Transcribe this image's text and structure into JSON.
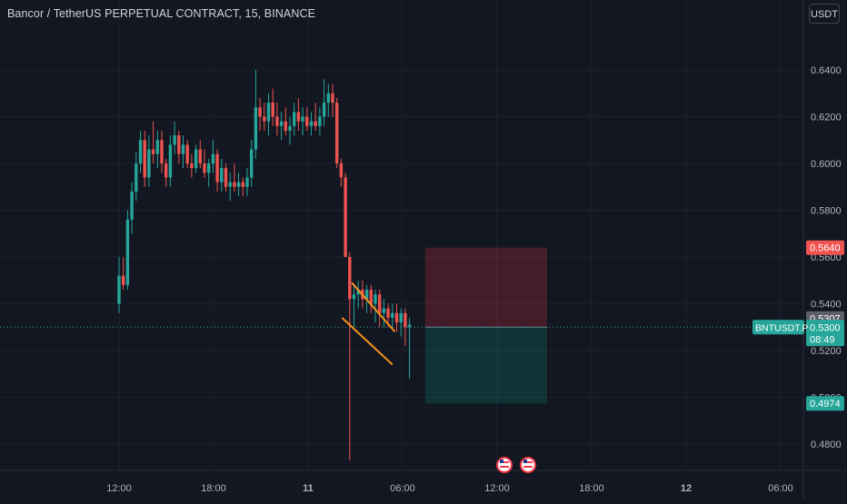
{
  "header": {
    "title": "Bancor / TetherUS PERPETUAL CONTRACT, 15, BINANCE",
    "currency_button": "USDT"
  },
  "colors": {
    "background": "#131722",
    "up": "#26a69a",
    "down": "#ef5350",
    "trendline": "#f7931a",
    "axis_text": "#b2b5be",
    "grid": "#1e222d"
  },
  "chart_data": {
    "type": "candlestick",
    "symbol": "BNTUSDT.P",
    "ylim": [
      0.47,
      0.66
    ],
    "y_ticks": [
      "0.6400",
      "0.6200",
      "0.6000",
      "0.5800",
      "0.5600",
      "0.5400",
      "0.5200",
      "0.5000",
      "0.4800"
    ],
    "x_ticks": [
      "12:00",
      "18:00",
      "11",
      "06:00",
      "12:00",
      "18:00",
      "12",
      "06:00"
    ],
    "price_labels": {
      "stop": "0.5640",
      "last_close": "0.5307",
      "current": "0.5300",
      "countdown": "08:49",
      "target": "0.4974"
    },
    "position": {
      "entry": 0.53,
      "stop": 0.564,
      "target": 0.4974
    },
    "candles_ohlc": [
      [
        0.54,
        0.56,
        0.536,
        0.552
      ],
      [
        0.552,
        0.56,
        0.546,
        0.548
      ],
      [
        0.548,
        0.58,
        0.546,
        0.576
      ],
      [
        0.576,
        0.592,
        0.57,
        0.588
      ],
      [
        0.588,
        0.605,
        0.584,
        0.6
      ],
      [
        0.6,
        0.614,
        0.596,
        0.61
      ],
      [
        0.61,
        0.614,
        0.59,
        0.594
      ],
      [
        0.594,
        0.612,
        0.59,
        0.606
      ],
      [
        0.606,
        0.618,
        0.6,
        0.604
      ],
      [
        0.604,
        0.614,
        0.598,
        0.61
      ],
      [
        0.61,
        0.614,
        0.596,
        0.6
      ],
      [
        0.6,
        0.602,
        0.59,
        0.594
      ],
      [
        0.594,
        0.612,
        0.59,
        0.608
      ],
      [
        0.608,
        0.618,
        0.604,
        0.612
      ],
      [
        0.612,
        0.614,
        0.6,
        0.604
      ],
      [
        0.604,
        0.612,
        0.598,
        0.608
      ],
      [
        0.608,
        0.61,
        0.598,
        0.6
      ],
      [
        0.6,
        0.604,
        0.594,
        0.598
      ],
      [
        0.598,
        0.608,
        0.596,
        0.606
      ],
      [
        0.606,
        0.61,
        0.598,
        0.6
      ],
      [
        0.6,
        0.606,
        0.594,
        0.596
      ],
      [
        0.596,
        0.602,
        0.59,
        0.6
      ],
      [
        0.6,
        0.61,
        0.596,
        0.604
      ],
      [
        0.604,
        0.606,
        0.588,
        0.592
      ],
      [
        0.592,
        0.602,
        0.588,
        0.598
      ],
      [
        0.598,
        0.6,
        0.588,
        0.59
      ],
      [
        0.59,
        0.596,
        0.584,
        0.592
      ],
      [
        0.592,
        0.6,
        0.588,
        0.59
      ],
      [
        0.59,
        0.596,
        0.586,
        0.592
      ],
      [
        0.592,
        0.594,
        0.586,
        0.59
      ],
      [
        0.59,
        0.598,
        0.586,
        0.594
      ],
      [
        0.594,
        0.61,
        0.59,
        0.606
      ],
      [
        0.606,
        0.64,
        0.602,
        0.624
      ],
      [
        0.624,
        0.628,
        0.614,
        0.62
      ],
      [
        0.62,
        0.626,
        0.614,
        0.618
      ],
      [
        0.618,
        0.63,
        0.612,
        0.626
      ],
      [
        0.626,
        0.632,
        0.616,
        0.62
      ],
      [
        0.62,
        0.626,
        0.612,
        0.616
      ],
      [
        0.616,
        0.622,
        0.61,
        0.618
      ],
      [
        0.618,
        0.624,
        0.612,
        0.614
      ],
      [
        0.614,
        0.62,
        0.608,
        0.616
      ],
      [
        0.616,
        0.626,
        0.612,
        0.622
      ],
      [
        0.622,
        0.628,
        0.614,
        0.618
      ],
      [
        0.618,
        0.624,
        0.612,
        0.62
      ],
      [
        0.62,
        0.624,
        0.614,
        0.616
      ],
      [
        0.616,
        0.622,
        0.612,
        0.618
      ],
      [
        0.618,
        0.626,
        0.614,
        0.616
      ],
      [
        0.616,
        0.624,
        0.612,
        0.62
      ],
      [
        0.62,
        0.636,
        0.616,
        0.626
      ],
      [
        0.626,
        0.634,
        0.62,
        0.63
      ],
      [
        0.63,
        0.634,
        0.62,
        0.626
      ],
      [
        0.626,
        0.628,
        0.598,
        0.6
      ],
      [
        0.6,
        0.602,
        0.59,
        0.594
      ],
      [
        0.594,
        0.596,
        0.56,
        0.56
      ],
      [
        0.56,
        0.562,
        0.473,
        0.542
      ],
      [
        0.542,
        0.548,
        0.53,
        0.544
      ],
      [
        0.544,
        0.55,
        0.538,
        0.546
      ],
      [
        0.546,
        0.55,
        0.538,
        0.542
      ],
      [
        0.542,
        0.548,
        0.536,
        0.546
      ],
      [
        0.546,
        0.548,
        0.536,
        0.54
      ],
      [
        0.54,
        0.546,
        0.532,
        0.544
      ],
      [
        0.544,
        0.546,
        0.53,
        0.536
      ],
      [
        0.536,
        0.542,
        0.53,
        0.538
      ],
      [
        0.538,
        0.54,
        0.53,
        0.534
      ],
      [
        0.534,
        0.54,
        0.53,
        0.536
      ],
      [
        0.536,
        0.54,
        0.528,
        0.532
      ],
      [
        0.532,
        0.538,
        0.526,
        0.536
      ],
      [
        0.536,
        0.538,
        0.522,
        0.53
      ],
      [
        0.53,
        0.534,
        0.508,
        0.531
      ]
    ],
    "trendlines": [
      {
        "t1": 0.5,
        "p1": 0.549,
        "t2": 10.6,
        "p2": 0.528
      },
      {
        "t1": -1.8,
        "p1": 0.534,
        "t2": 10.0,
        "p2": 0.514
      }
    ],
    "calendar_event_count": 2
  }
}
